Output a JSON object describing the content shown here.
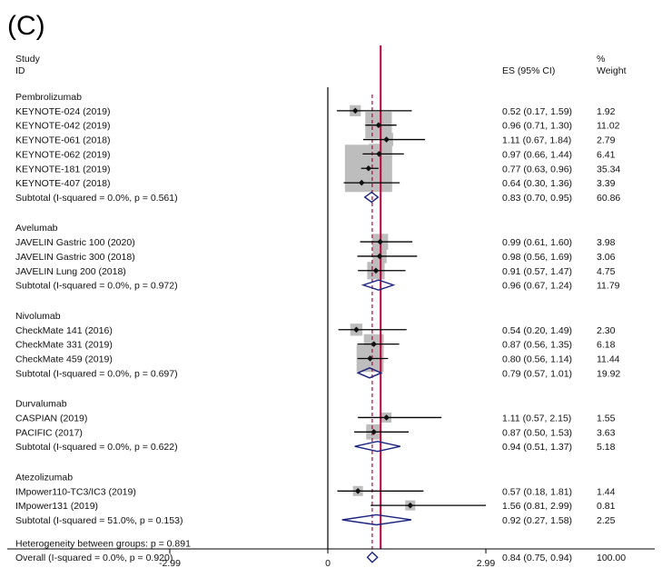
{
  "panel_label": "(C)",
  "headers": {
    "study": "Study",
    "id": "ID",
    "es": "ES (95% CI)",
    "pct": "%",
    "weight": "Weight"
  },
  "colors": {
    "reference_line": "#c0003c",
    "overall_dashed": "#c0003c",
    "diamond": "#1a237e",
    "weight_box": "#bdbdbd",
    "ci_line": "#000000"
  },
  "chart_data": {
    "type": "forest",
    "effect_measure": "ES (95% CI)",
    "x_axis": {
      "ticks": [
        -2.99,
        0,
        2.99
      ],
      "tick_labels": [
        "-2.99",
        "0",
        "2.99"
      ],
      "null_line": 0,
      "reference_line": 1
    },
    "overall_estimate": 0.84,
    "groups": [
      {
        "name": "Pembrolizumab",
        "studies": [
          {
            "label": "KEYNOTE-024 (2019)",
            "es": 0.52,
            "lo": 0.17,
            "hi": 1.59,
            "es_text": "0.52 (0.17, 1.59)",
            "weight": "1.92"
          },
          {
            "label": "KEYNOTE-042 (2019)",
            "es": 0.96,
            "lo": 0.71,
            "hi": 1.3,
            "es_text": "0.96 (0.71, 1.30)",
            "weight": "11.02"
          },
          {
            "label": "KEYNOTE-061 (2018)",
            "es": 1.11,
            "lo": 0.67,
            "hi": 1.84,
            "es_text": "1.11 (0.67, 1.84)",
            "weight": "2.79"
          },
          {
            "label": "KEYNOTE-062 (2019)",
            "es": 0.97,
            "lo": 0.66,
            "hi": 1.44,
            "es_text": "0.97 (0.66, 1.44)",
            "weight": "6.41"
          },
          {
            "label": "KEYNOTE-181 (2019)",
            "es": 0.77,
            "lo": 0.63,
            "hi": 0.96,
            "es_text": "0.77 (0.63, 0.96)",
            "weight": "35.34"
          },
          {
            "label": "KEYNOTE-407 (2018)",
            "es": 0.64,
            "lo": 0.3,
            "hi": 1.36,
            "es_text": "0.64 (0.30, 1.36)",
            "weight": "3.39"
          }
        ],
        "subtotal": {
          "label": "Subtotal  (I-squared = 0.0%, p = 0.561)",
          "es": 0.83,
          "lo": 0.7,
          "hi": 0.95,
          "es_text": "0.83 (0.70, 0.95)",
          "weight": "60.86"
        }
      },
      {
        "name": "Avelumab",
        "studies": [
          {
            "label": "JAVELIN Gastric 100 (2020)",
            "es": 0.99,
            "lo": 0.61,
            "hi": 1.6,
            "es_text": "0.99 (0.61, 1.60)",
            "weight": "3.98"
          },
          {
            "label": "JAVELIN Gastric 300 (2018)",
            "es": 0.98,
            "lo": 0.56,
            "hi": 1.69,
            "es_text": "0.98 (0.56, 1.69)",
            "weight": "3.06"
          },
          {
            "label": "JAVELIN Lung 200 (2018)",
            "es": 0.91,
            "lo": 0.57,
            "hi": 1.47,
            "es_text": "0.91 (0.57, 1.47)",
            "weight": "4.75"
          }
        ],
        "subtotal": {
          "label": "Subtotal  (I-squared = 0.0%, p = 0.972)",
          "es": 0.96,
          "lo": 0.67,
          "hi": 1.24,
          "es_text": "0.96 (0.67, 1.24)",
          "weight": "11.79"
        }
      },
      {
        "name": "Nivolumab",
        "studies": [
          {
            "label": "CheckMate 141 (2016)",
            "es": 0.54,
            "lo": 0.2,
            "hi": 1.49,
            "es_text": "0.54 (0.20, 1.49)",
            "weight": "2.30"
          },
          {
            "label": "CheckMate 331 (2019)",
            "es": 0.87,
            "lo": 0.56,
            "hi": 1.35,
            "es_text": "0.87 (0.56, 1.35)",
            "weight": "6.18"
          },
          {
            "label": "CheckMate 459 (2019)",
            "es": 0.8,
            "lo": 0.56,
            "hi": 1.14,
            "es_text": "0.80 (0.56, 1.14)",
            "weight": "11.44"
          }
        ],
        "subtotal": {
          "label": "Subtotal  (I-squared = 0.0%, p = 0.697)",
          "es": 0.79,
          "lo": 0.57,
          "hi": 1.01,
          "es_text": "0.79 (0.57, 1.01)",
          "weight": "19.92"
        }
      },
      {
        "name": "Durvalumab",
        "studies": [
          {
            "label": "CASPIAN (2019)",
            "es": 1.11,
            "lo": 0.57,
            "hi": 2.15,
            "es_text": "1.11 (0.57, 2.15)",
            "weight": "1.55"
          },
          {
            "label": "PACIFIC (2017)",
            "es": 0.87,
            "lo": 0.5,
            "hi": 1.53,
            "es_text": "0.87 (0.50, 1.53)",
            "weight": "3.63"
          }
        ],
        "subtotal": {
          "label": "Subtotal  (I-squared = 0.0%, p = 0.622)",
          "es": 0.94,
          "lo": 0.51,
          "hi": 1.37,
          "es_text": "0.94 (0.51, 1.37)",
          "weight": "5.18"
        }
      },
      {
        "name": "Atezolizumab",
        "studies": [
          {
            "label": "IMpower110-TC3/IC3 (2019)",
            "es": 0.57,
            "lo": 0.18,
            "hi": 1.81,
            "es_text": "0.57 (0.18, 1.81)",
            "weight": "1.44"
          },
          {
            "label": "IMpower131 (2019)",
            "es": 1.56,
            "lo": 0.81,
            "hi": 2.99,
            "es_text": "1.56 (0.81, 2.99)",
            "weight": "0.81"
          }
        ],
        "subtotal": {
          "label": "Subtotal  (I-squared = 51.0%, p = 0.153)",
          "es": 0.92,
          "lo": 0.27,
          "hi": 1.58,
          "es_text": "0.92 (0.27, 1.58)",
          "weight": "2.25"
        }
      }
    ],
    "heterogeneity": "Heterogeneity between groups: p = 0.891",
    "overall": {
      "label": "Overall  (I-squared = 0.0%, p = 0.920)",
      "es": 0.84,
      "lo": 0.75,
      "hi": 0.94,
      "es_text": "0.84 (0.75, 0.94)",
      "weight": "100.00"
    }
  }
}
